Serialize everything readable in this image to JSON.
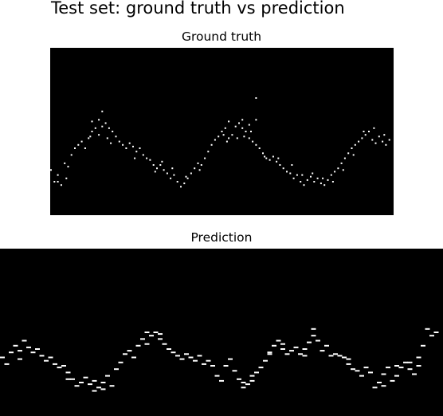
{
  "figure": {
    "title": "Test set: ground truth vs prediction",
    "background": "#000000",
    "point_color": "#ffffff"
  },
  "chart_data": [
    {
      "type": "scatter",
      "title": "Ground truth",
      "xlabel": "",
      "ylabel": "",
      "xlim": [
        0,
        1
      ],
      "ylim": [
        0,
        1
      ],
      "grid": false,
      "axes_visible": false,
      "series": [
        {
          "points": [
            [
              0.0,
              0.27
            ],
            [
              0.01,
              0.2
            ],
            [
              0.02,
              0.24
            ],
            [
              0.03,
              0.18
            ],
            [
              0.04,
              0.31
            ],
            [
              0.05,
              0.29
            ],
            [
              0.06,
              0.36
            ],
            [
              0.07,
              0.4
            ],
            [
              0.08,
              0.42
            ],
            [
              0.09,
              0.44
            ],
            [
              0.1,
              0.4
            ],
            [
              0.11,
              0.46
            ],
            [
              0.12,
              0.5
            ],
            [
              0.13,
              0.52
            ],
            [
              0.14,
              0.48
            ],
            [
              0.15,
              0.53
            ],
            [
              0.16,
              0.55
            ],
            [
              0.17,
              0.52
            ],
            [
              0.18,
              0.5
            ],
            [
              0.19,
              0.47
            ],
            [
              0.2,
              0.44
            ],
            [
              0.21,
              0.42
            ],
            [
              0.22,
              0.4
            ],
            [
              0.23,
              0.43
            ],
            [
              0.24,
              0.41
            ],
            [
              0.25,
              0.38
            ],
            [
              0.26,
              0.4
            ],
            [
              0.27,
              0.36
            ],
            [
              0.28,
              0.34
            ],
            [
              0.29,
              0.33
            ],
            [
              0.3,
              0.3
            ],
            [
              0.31,
              0.28
            ],
            [
              0.32,
              0.3
            ],
            [
              0.33,
              0.27
            ],
            [
              0.34,
              0.25
            ],
            [
              0.35,
              0.22
            ],
            [
              0.36,
              0.24
            ],
            [
              0.37,
              0.2
            ],
            [
              0.38,
              0.17
            ],
            [
              0.39,
              0.19
            ],
            [
              0.4,
              0.22
            ],
            [
              0.41,
              0.25
            ],
            [
              0.42,
              0.28
            ],
            [
              0.43,
              0.31
            ],
            [
              0.44,
              0.3
            ],
            [
              0.45,
              0.34
            ],
            [
              0.46,
              0.38
            ],
            [
              0.47,
              0.42
            ],
            [
              0.48,
              0.45
            ],
            [
              0.49,
              0.47
            ],
            [
              0.5,
              0.5
            ],
            [
              0.51,
              0.52
            ],
            [
              0.52,
              0.46
            ],
            [
              0.53,
              0.48
            ],
            [
              0.54,
              0.53
            ],
            [
              0.55,
              0.55
            ],
            [
              0.56,
              0.52
            ],
            [
              0.57,
              0.5
            ],
            [
              0.58,
              0.46
            ],
            [
              0.59,
              0.44
            ],
            [
              0.6,
              0.42
            ],
            [
              0.61,
              0.4
            ],
            [
              0.62,
              0.37
            ],
            [
              0.63,
              0.34
            ],
            [
              0.64,
              0.33
            ],
            [
              0.65,
              0.35
            ],
            [
              0.66,
              0.32
            ],
            [
              0.67,
              0.3
            ],
            [
              0.68,
              0.28
            ],
            [
              0.69,
              0.26
            ],
            [
              0.7,
              0.25
            ],
            [
              0.71,
              0.22
            ],
            [
              0.72,
              0.24
            ],
            [
              0.73,
              0.2
            ],
            [
              0.74,
              0.18
            ],
            [
              0.75,
              0.21
            ],
            [
              0.76,
              0.23
            ],
            [
              0.77,
              0.2
            ],
            [
              0.78,
              0.22
            ],
            [
              0.79,
              0.19
            ],
            [
              0.8,
              0.18
            ],
            [
              0.81,
              0.21
            ],
            [
              0.82,
              0.24
            ],
            [
              0.83,
              0.26
            ],
            [
              0.84,
              0.28
            ],
            [
              0.85,
              0.31
            ],
            [
              0.86,
              0.34
            ],
            [
              0.87,
              0.37
            ],
            [
              0.88,
              0.4
            ],
            [
              0.89,
              0.42
            ],
            [
              0.9,
              0.44
            ],
            [
              0.91,
              0.46
            ],
            [
              0.92,
              0.48
            ],
            [
              0.93,
              0.5
            ],
            [
              0.94,
              0.45
            ],
            [
              0.95,
              0.43
            ],
            [
              0.96,
              0.47
            ],
            [
              0.97,
              0.44
            ],
            [
              0.98,
              0.42
            ],
            [
              0.99,
              0.45
            ],
            [
              0.6,
              0.7
            ],
            [
              0.15,
              0.62
            ],
            [
              0.14,
              0.57
            ],
            [
              0.12,
              0.56
            ],
            [
              0.02,
              0.2
            ],
            [
              0.045,
              0.22
            ],
            [
              0.115,
              0.47
            ],
            [
              0.165,
              0.46
            ],
            [
              0.175,
              0.43
            ],
            [
              0.245,
              0.34
            ],
            [
              0.305,
              0.26
            ],
            [
              0.325,
              0.32
            ],
            [
              0.355,
              0.28
            ],
            [
              0.395,
              0.23
            ],
            [
              0.435,
              0.27
            ],
            [
              0.505,
              0.48
            ],
            [
              0.515,
              0.44
            ],
            [
              0.545,
              0.46
            ],
            [
              0.565,
              0.47
            ],
            [
              0.585,
              0.5
            ],
            [
              0.625,
              0.35
            ],
            [
              0.665,
              0.34
            ],
            [
              0.705,
              0.3
            ],
            [
              0.735,
              0.24
            ],
            [
              0.765,
              0.25
            ],
            [
              0.795,
              0.22
            ],
            [
              0.825,
              0.2
            ],
            [
              0.855,
              0.27
            ],
            [
              0.885,
              0.36
            ],
            [
              0.915,
              0.5
            ],
            [
              0.945,
              0.52
            ],
            [
              0.975,
              0.48
            ],
            [
              0.52,
              0.56
            ],
            [
              0.56,
              0.57
            ],
            [
              0.58,
              0.54
            ],
            [
              0.6,
              0.57
            ]
          ]
        }
      ]
    },
    {
      "type": "scatter",
      "title": "Prediction",
      "xlabel": "",
      "ylabel": "",
      "xlim": [
        0,
        1
      ],
      "ylim": [
        0,
        1
      ],
      "grid": false,
      "axes_visible": false,
      "series": [
        {
          "points": [
            [
              0.0,
              0.35
            ],
            [
              0.01,
              0.31
            ],
            [
              0.02,
              0.38
            ],
            [
              0.03,
              0.42
            ],
            [
              0.04,
              0.34
            ],
            [
              0.05,
              0.45
            ],
            [
              0.06,
              0.41
            ],
            [
              0.07,
              0.38
            ],
            [
              0.08,
              0.4
            ],
            [
              0.09,
              0.36
            ],
            [
              0.1,
              0.33
            ],
            [
              0.11,
              0.35
            ],
            [
              0.12,
              0.31
            ],
            [
              0.13,
              0.29
            ],
            [
              0.14,
              0.3
            ],
            [
              0.15,
              0.26
            ],
            [
              0.16,
              0.22
            ],
            [
              0.17,
              0.18
            ],
            [
              0.18,
              0.2
            ],
            [
              0.19,
              0.23
            ],
            [
              0.2,
              0.19
            ],
            [
              0.21,
              0.21
            ],
            [
              0.22,
              0.17
            ],
            [
              0.23,
              0.2
            ],
            [
              0.24,
              0.24
            ],
            [
              0.25,
              0.18
            ],
            [
              0.26,
              0.28
            ],
            [
              0.27,
              0.32
            ],
            [
              0.28,
              0.37
            ],
            [
              0.29,
              0.39
            ],
            [
              0.3,
              0.35
            ],
            [
              0.31,
              0.42
            ],
            [
              0.32,
              0.46
            ],
            [
              0.33,
              0.43
            ],
            [
              0.34,
              0.48
            ],
            [
              0.35,
              0.5
            ],
            [
              0.36,
              0.46
            ],
            [
              0.37,
              0.43
            ],
            [
              0.38,
              0.4
            ],
            [
              0.39,
              0.38
            ],
            [
              0.4,
              0.36
            ],
            [
              0.41,
              0.34
            ],
            [
              0.42,
              0.37
            ],
            [
              0.43,
              0.35
            ],
            [
              0.44,
              0.33
            ],
            [
              0.45,
              0.36
            ],
            [
              0.46,
              0.31
            ],
            [
              0.47,
              0.33
            ],
            [
              0.48,
              0.3
            ],
            [
              0.49,
              0.24
            ],
            [
              0.5,
              0.21
            ],
            [
              0.51,
              0.3
            ],
            [
              0.52,
              0.34
            ],
            [
              0.53,
              0.27
            ],
            [
              0.54,
              0.22
            ],
            [
              0.55,
              0.2
            ],
            [
              0.56,
              0.19
            ],
            [
              0.57,
              0.24
            ],
            [
              0.58,
              0.26
            ],
            [
              0.59,
              0.29
            ],
            [
              0.6,
              0.33
            ],
            [
              0.61,
              0.38
            ],
            [
              0.62,
              0.42
            ],
            [
              0.63,
              0.45
            ],
            [
              0.64,
              0.4
            ],
            [
              0.65,
              0.37
            ],
            [
              0.66,
              0.39
            ],
            [
              0.67,
              0.41
            ],
            [
              0.68,
              0.37
            ],
            [
              0.69,
              0.36
            ],
            [
              0.7,
              0.44
            ],
            [
              0.71,
              0.52
            ],
            [
              0.72,
              0.45
            ],
            [
              0.73,
              0.39
            ],
            [
              0.74,
              0.42
            ],
            [
              0.75,
              0.36
            ],
            [
              0.76,
              0.37
            ],
            [
              0.77,
              0.36
            ],
            [
              0.78,
              0.35
            ],
            [
              0.79,
              0.31
            ],
            [
              0.8,
              0.28
            ],
            [
              0.81,
              0.27
            ],
            [
              0.82,
              0.24
            ],
            [
              0.83,
              0.29
            ],
            [
              0.84,
              0.26
            ],
            [
              0.85,
              0.17
            ],
            [
              0.86,
              0.2
            ],
            [
              0.87,
              0.25
            ],
            [
              0.88,
              0.29
            ],
            [
              0.89,
              0.21
            ],
            [
              0.9,
              0.24
            ],
            [
              0.91,
              0.29
            ],
            [
              0.92,
              0.32
            ],
            [
              0.93,
              0.28
            ],
            [
              0.94,
              0.25
            ],
            [
              0.95,
              0.35
            ],
            [
              0.96,
              0.42
            ],
            [
              0.97,
              0.52
            ],
            [
              0.98,
              0.48
            ],
            [
              0.99,
              0.5
            ],
            [
              0.21,
              0.15
            ],
            [
              0.23,
              0.16
            ],
            [
              0.15,
              0.22
            ],
            [
              0.55,
              0.17
            ],
            [
              0.57,
              0.21
            ],
            [
              0.61,
              0.37
            ],
            [
              0.69,
              0.4
            ],
            [
              0.71,
              0.48
            ],
            [
              0.79,
              0.34
            ],
            [
              0.87,
              0.18
            ],
            [
              0.9,
              0.3
            ],
            [
              0.93,
              0.32
            ],
            [
              0.04,
              0.39
            ],
            [
              0.33,
              0.5
            ],
            [
              0.36,
              0.49
            ],
            [
              0.64,
              0.43
            ],
            [
              0.95,
              0.3
            ]
          ]
        }
      ]
    }
  ]
}
